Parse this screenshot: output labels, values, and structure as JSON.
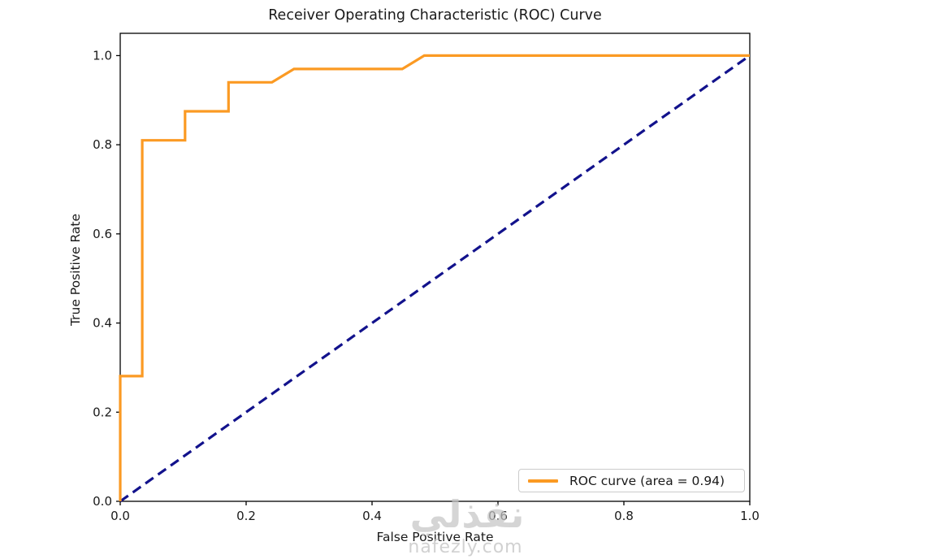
{
  "chart_data": {
    "type": "line",
    "title": "Receiver Operating Characteristic (ROC) Curve",
    "xlabel": "False Positive Rate",
    "ylabel": "True Positive Rate",
    "xlim": [
      0.0,
      1.0
    ],
    "ylim": [
      0.0,
      1.05
    ],
    "grid": false,
    "x_ticks": [
      {
        "value": 0.0,
        "label": "0.0"
      },
      {
        "value": 0.2,
        "label": "0.2"
      },
      {
        "value": 0.4,
        "label": "0.4"
      },
      {
        "value": 0.6,
        "label": "0.6"
      },
      {
        "value": 0.8,
        "label": "0.8"
      },
      {
        "value": 1.0,
        "label": "1.0"
      }
    ],
    "y_ticks": [
      {
        "value": 0.0,
        "label": "0.0"
      },
      {
        "value": 0.2,
        "label": "0.2"
      },
      {
        "value": 0.4,
        "label": "0.4"
      },
      {
        "value": 0.6,
        "label": "0.6"
      },
      {
        "value": 0.8,
        "label": "0.8"
      },
      {
        "value": 1.0,
        "label": "1.0"
      }
    ],
    "series": [
      {
        "name": "chance-diagonal",
        "color": "#12128C",
        "style": "dashed",
        "width": 3.2,
        "points": [
          [
            0.0,
            0.0
          ],
          [
            1.0,
            1.0
          ]
        ]
      },
      {
        "name": "ROC curve",
        "color": "#FB9A23",
        "style": "solid",
        "width": 3.2,
        "points": [
          [
            0.0,
            0.0
          ],
          [
            0.0,
            0.281
          ],
          [
            0.035,
            0.281
          ],
          [
            0.035,
            0.81
          ],
          [
            0.103,
            0.81
          ],
          [
            0.103,
            0.875
          ],
          [
            0.172,
            0.875
          ],
          [
            0.172,
            0.94
          ],
          [
            0.241,
            0.94
          ],
          [
            0.276,
            0.97
          ],
          [
            0.448,
            0.97
          ],
          [
            0.483,
            1.0
          ],
          [
            1.0,
            1.0
          ]
        ]
      }
    ],
    "auc": 0.94,
    "legend": {
      "position": "lower right",
      "entries": [
        {
          "label": "ROC curve (area = 0.94)",
          "color": "#FB9A23"
        }
      ]
    },
    "axis_color": "#000000",
    "tick_label_color": "#1a1a1a"
  },
  "watermark": {
    "logo_text": "نفذلي",
    "domain": "nafezly.com",
    "color": "#c5c5c5"
  }
}
